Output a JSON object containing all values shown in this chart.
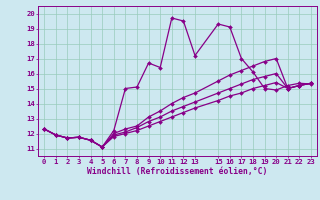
{
  "title": "",
  "xlabel": "Windchill (Refroidissement éolien,°C)",
  "bg_color": "#cde8f0",
  "line_color": "#880088",
  "grid_color": "#99ccbb",
  "xlim": [
    -0.5,
    23.5
  ],
  "ylim": [
    10.5,
    20.5
  ],
  "xtick_locs": [
    0,
    1,
    2,
    3,
    4,
    5,
    6,
    7,
    8,
    9,
    10,
    11,
    12,
    13,
    15,
    16,
    17,
    18,
    19,
    20,
    21,
    22,
    23
  ],
  "xtick_labels": [
    "0",
    "1",
    "2",
    "3",
    "4",
    "5",
    "6",
    "7",
    "8",
    "9",
    "10",
    "11",
    "12",
    "13",
    "15",
    "16",
    "17",
    "18",
    "19",
    "20",
    "21",
    "22",
    "23"
  ],
  "yticks": [
    11,
    12,
    13,
    14,
    15,
    16,
    17,
    18,
    19,
    20
  ],
  "series1_x": [
    0,
    1,
    2,
    3,
    4,
    5,
    6,
    7,
    8,
    9,
    10,
    11,
    12,
    13,
    15,
    16,
    17,
    18,
    19,
    20,
    21,
    22,
    23
  ],
  "series1_y": [
    12.3,
    11.9,
    11.7,
    11.75,
    11.55,
    11.1,
    12.2,
    15.0,
    15.1,
    16.7,
    16.4,
    19.7,
    19.5,
    17.2,
    19.3,
    19.1,
    17.0,
    16.1,
    15.0,
    14.9,
    15.2,
    15.35,
    15.3
  ],
  "series2_x": [
    0,
    1,
    2,
    3,
    4,
    5,
    6,
    7,
    8,
    9,
    10,
    11,
    12,
    13,
    15,
    16,
    17,
    18,
    19,
    20,
    21,
    22,
    23
  ],
  "series2_y": [
    12.3,
    11.9,
    11.7,
    11.75,
    11.55,
    11.1,
    12.0,
    12.3,
    12.5,
    13.1,
    13.5,
    14.0,
    14.4,
    14.7,
    15.5,
    15.9,
    16.2,
    16.5,
    16.8,
    17.0,
    15.0,
    15.2,
    15.35
  ],
  "series3_x": [
    0,
    1,
    2,
    3,
    4,
    5,
    6,
    7,
    8,
    9,
    10,
    11,
    12,
    13,
    15,
    16,
    17,
    18,
    19,
    20,
    21,
    22,
    23
  ],
  "series3_y": [
    12.3,
    11.9,
    11.7,
    11.75,
    11.55,
    11.1,
    11.9,
    12.1,
    12.4,
    12.8,
    13.1,
    13.5,
    13.8,
    14.1,
    14.7,
    15.0,
    15.3,
    15.6,
    15.8,
    16.0,
    15.0,
    15.2,
    15.35
  ],
  "series4_x": [
    0,
    1,
    2,
    3,
    4,
    5,
    6,
    7,
    8,
    9,
    10,
    11,
    12,
    13,
    15,
    16,
    17,
    18,
    19,
    20,
    21,
    22,
    23
  ],
  "series4_y": [
    12.3,
    11.9,
    11.7,
    11.75,
    11.55,
    11.1,
    11.8,
    12.0,
    12.2,
    12.5,
    12.8,
    13.1,
    13.4,
    13.7,
    14.2,
    14.5,
    14.7,
    15.0,
    15.2,
    15.4,
    15.0,
    15.2,
    15.35
  ],
  "markersize": 2.0,
  "linewidth": 0.9
}
